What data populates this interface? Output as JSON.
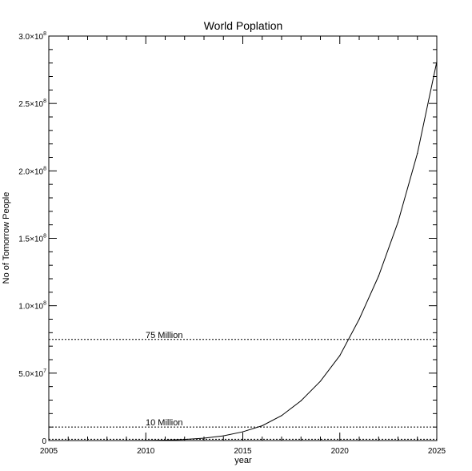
{
  "chart_data": {
    "type": "line",
    "title": "World Poplation",
    "xlabel": "year",
    "ylabel": "No of Tomorrow People",
    "xlim": [
      2005,
      2025
    ],
    "ylim": [
      0,
      300000000
    ],
    "grid": false,
    "x_ticks": [
      2005,
      2010,
      2015,
      2020,
      2025
    ],
    "x_tick_labels": [
      "2005",
      "2010",
      "2015",
      "2020",
      "2025"
    ],
    "y_ticks": [
      0,
      50000000,
      100000000,
      150000000,
      200000000,
      250000000,
      300000000
    ],
    "y_tick_labels": [
      {
        "mantissa": "0",
        "exponent": ""
      },
      {
        "mantissa": "5.0×10",
        "exponent": "7"
      },
      {
        "mantissa": "1.0×10",
        "exponent": "8"
      },
      {
        "mantissa": "1.5×10",
        "exponent": "8"
      },
      {
        "mantissa": "2.0×10",
        "exponent": "8"
      },
      {
        "mantissa": "2.5×10",
        "exponent": "8"
      },
      {
        "mantissa": "3.0×10",
        "exponent": "8"
      }
    ],
    "series": [
      {
        "x": [
          2009,
          2010,
          2011,
          2012,
          2013,
          2014,
          2015,
          2016,
          2017,
          2018,
          2019,
          2020,
          2021,
          2022,
          2023,
          2024,
          2025
        ],
        "values": [
          0,
          100000,
          300000,
          800000,
          1800000,
          3500000,
          6500000,
          11000000,
          18500000,
          29500000,
          44000000,
          63000000,
          90000000,
          122000000,
          162000000,
          213000000,
          281000000
        ]
      }
    ],
    "reference_lines": [
      {
        "y": 75000000,
        "label": "75 Million"
      },
      {
        "y": 10000000,
        "label": "10 Million"
      },
      {
        "y": 1000000,
        "label": ""
      }
    ]
  }
}
